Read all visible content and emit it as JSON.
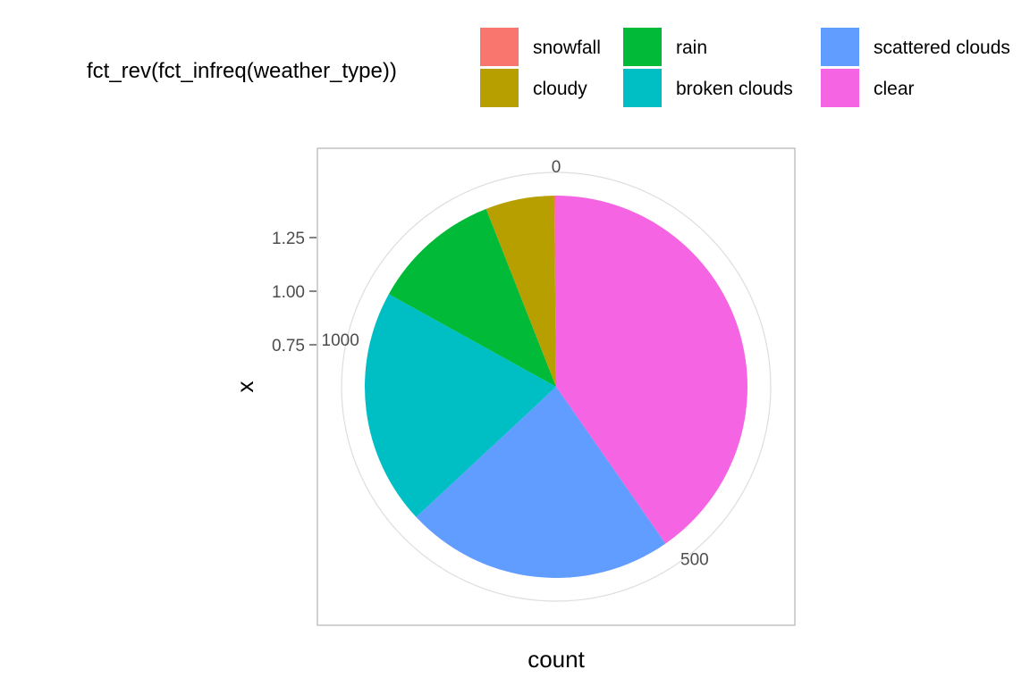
{
  "chart_data": {
    "type": "pie",
    "coord": "polar (theta = y)",
    "xlabel": "count",
    "ylabel": "x",
    "legend": {
      "title": "fct_rev(fct_infreq(weather_type))",
      "placement": "top",
      "entries": [
        {
          "label": "snowfall",
          "color": "#F8766D"
        },
        {
          "label": "cloudy",
          "color": "#B79F00"
        },
        {
          "label": "rain",
          "color": "#00BA38"
        },
        {
          "label": "broken clouds",
          "color": "#00BFC4"
        },
        {
          "label": "scattered clouds",
          "color": "#619CFF"
        },
        {
          "label": "clear",
          "color": "#F564E3"
        }
      ]
    },
    "slices": [
      {
        "label": "snowfall",
        "value": 2,
        "color": "#F8766D"
      },
      {
        "label": "cloudy",
        "value": 74,
        "color": "#B79F00"
      },
      {
        "label": "rain",
        "value": 140,
        "color": "#00BA38"
      },
      {
        "label": "broken clouds",
        "value": 255,
        "color": "#00BFC4"
      },
      {
        "label": "scattered clouds",
        "value": 290,
        "color": "#619CFF"
      },
      {
        "label": "clear",
        "value": 514,
        "color": "#F564E3"
      }
    ],
    "theta_ticks": [
      0,
      500,
      1000
    ],
    "theta_tick_labels": [
      "0",
      "500",
      "1000"
    ],
    "radial_ticks": [
      0.75,
      1.0,
      1.25
    ],
    "radial_tick_labels": [
      "0.75",
      "1.00",
      "1.25"
    ],
    "panel_border": true,
    "grid": true
  }
}
